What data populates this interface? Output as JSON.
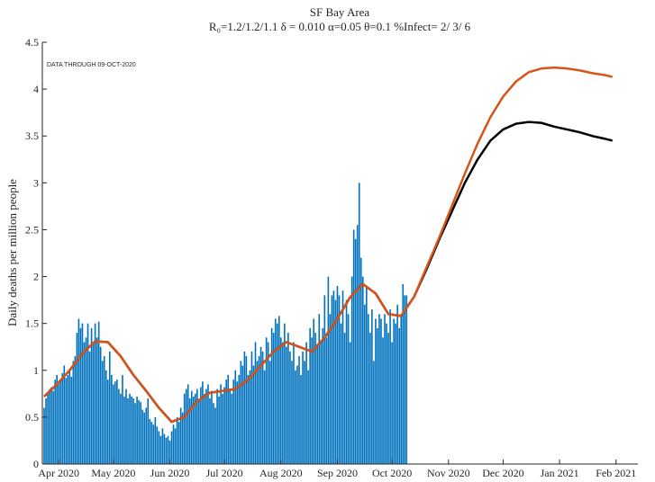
{
  "chart_data": {
    "type": "bar",
    "title": "SF Bay Area",
    "subtitle": "R₀=1.2/1.2/1.1  δ = 0.010  α=0.05  θ=0.1  %Infect= 2/ 3/ 6",
    "annotation": "DATA THROUGH 09-OCT-2020",
    "ylabel": "Daily deaths per million people",
    "xlim": [
      -9,
      318
    ],
    "xticks": [
      {
        "value": 0,
        "label": "Apr 2020"
      },
      {
        "value": 30,
        "label": "May 2020"
      },
      {
        "value": 61,
        "label": "Jun 2020"
      },
      {
        "value": 91,
        "label": "Jul 2020"
      },
      {
        "value": 122,
        "label": "Aug 2020"
      },
      {
        "value": 153,
        "label": "Sep 2020"
      },
      {
        "value": 183,
        "label": "Oct 2020"
      },
      {
        "value": 214,
        "label": "Nov 2020"
      },
      {
        "value": 244,
        "label": "Dec 2020"
      },
      {
        "value": 275,
        "label": "Jan 2021"
      },
      {
        "value": 306,
        "label": "Feb 2021"
      }
    ],
    "ylim": [
      0,
      4.5
    ],
    "yticks": [
      0,
      0.5,
      1,
      1.5,
      2,
      2.5,
      3,
      3.5,
      4,
      4.5
    ],
    "bars": {
      "color": "#0072bd",
      "x": [
        -8,
        -7,
        -6,
        -5,
        -4,
        -3,
        -2,
        -1,
        0,
        1,
        2,
        3,
        4,
        5,
        6,
        7,
        8,
        9,
        10,
        11,
        12,
        13,
        14,
        15,
        16,
        17,
        18,
        19,
        20,
        21,
        22,
        23,
        24,
        25,
        26,
        27,
        28,
        29,
        30,
        31,
        32,
        33,
        34,
        35,
        36,
        37,
        38,
        39,
        40,
        41,
        42,
        43,
        44,
        45,
        46,
        47,
        48,
        49,
        50,
        51,
        52,
        53,
        54,
        55,
        56,
        57,
        58,
        59,
        60,
        61,
        62,
        63,
        64,
        65,
        66,
        67,
        68,
        69,
        70,
        71,
        72,
        73,
        74,
        75,
        76,
        77,
        78,
        79,
        80,
        81,
        82,
        83,
        84,
        85,
        86,
        87,
        88,
        89,
        90,
        91,
        92,
        93,
        94,
        95,
        96,
        97,
        98,
        99,
        100,
        101,
        102,
        103,
        104,
        105,
        106,
        107,
        108,
        109,
        110,
        111,
        112,
        113,
        114,
        115,
        116,
        117,
        118,
        119,
        120,
        121,
        122,
        123,
        124,
        125,
        126,
        127,
        128,
        129,
        130,
        131,
        132,
        133,
        134,
        135,
        136,
        137,
        138,
        139,
        140,
        141,
        142,
        143,
        144,
        145,
        146,
        147,
        148,
        149,
        150,
        151,
        152,
        153,
        154,
        155,
        156,
        157,
        158,
        159,
        160,
        161,
        162,
        163,
        164,
        165,
        166,
        167,
        168,
        169,
        170,
        171,
        172,
        173,
        174,
        175,
        176,
        177,
        178,
        179,
        180,
        181,
        182,
        183,
        184,
        185,
        186,
        187,
        188,
        189,
        190,
        191
      ],
      "values": [
        0.6,
        0.7,
        0.75,
        0.8,
        0.82,
        0.78,
        0.9,
        0.95,
        0.85,
        0.9,
        0.97,
        1.05,
        0.92,
        0.95,
        1.0,
        0.93,
        1.1,
        1.15,
        1.4,
        1.55,
        1.45,
        1.5,
        1.3,
        1.35,
        1.5,
        1.2,
        1.45,
        1.3,
        1.5,
        1.35,
        1.52,
        1.25,
        1.1,
        1.15,
        1.0,
        0.9,
        1.2,
        0.95,
        0.85,
        0.88,
        0.9,
        0.8,
        0.75,
        0.95,
        0.72,
        0.8,
        0.7,
        0.75,
        0.72,
        0.7,
        0.65,
        0.72,
        0.68,
        0.66,
        0.58,
        0.55,
        0.6,
        0.7,
        0.48,
        0.45,
        0.42,
        0.5,
        0.4,
        0.35,
        0.3,
        0.38,
        0.32,
        0.28,
        0.3,
        0.25,
        0.35,
        0.42,
        0.38,
        0.5,
        0.45,
        0.6,
        0.55,
        0.75,
        0.8,
        0.85,
        0.7,
        0.78,
        0.72,
        0.75,
        0.8,
        0.68,
        0.82,
        0.88,
        0.75,
        0.8,
        0.85,
        0.7,
        0.78,
        0.65,
        0.6,
        0.8,
        0.72,
        0.85,
        0.75,
        0.82,
        0.9,
        0.95,
        0.8,
        0.75,
        0.9,
        1.0,
        0.88,
        0.95,
        1.1,
        1.05,
        1.2,
        1.15,
        0.95,
        1.0,
        1.2,
        1.05,
        1.3,
        1.1,
        1.15,
        1.25,
        1.2,
        1.0,
        1.35,
        1.3,
        1.1,
        1.45,
        1.4,
        1.55,
        1.5,
        1.58,
        1.35,
        1.3,
        1.5,
        1.25,
        1.4,
        1.2,
        1.1,
        1.3,
        1.0,
        1.05,
        1.15,
        0.95,
        1.2,
        1.1,
        1.3,
        1.0,
        1.45,
        1.35,
        1.55,
        1.4,
        1.25,
        1.6,
        1.3,
        1.45,
        1.8,
        1.35,
        2.0,
        1.6,
        1.8,
        1.85,
        1.75,
        1.9,
        1.8,
        1.5,
        1.85,
        1.4,
        1.75,
        1.6,
        1.3,
        2.0,
        2.5,
        2.4,
        2.55,
        3.0,
        2.2,
        2.0,
        1.7,
        1.9,
        1.6,
        1.4,
        1.65,
        1.1,
        1.55,
        1.45,
        1.6,
        1.55,
        1.35,
        1.6,
        1.5,
        1.4,
        1.65,
        1.3,
        1.55,
        1.5,
        1.7,
        1.45,
        1.6,
        1.92,
        1.8,
        1.8
      ]
    },
    "lines": [
      {
        "color": "#000000",
        "x": [
          -8,
          -1,
          6,
          13,
          20,
          27,
          34,
          41,
          48,
          55,
          62,
          69,
          76,
          83,
          90,
          97,
          104,
          111,
          118,
          125,
          132,
          139,
          146,
          153,
          160,
          167,
          174,
          181,
          188,
          195,
          202,
          209,
          216,
          223,
          230,
          237,
          244,
          251,
          258,
          265,
          272,
          279,
          286,
          293,
          300,
          304
        ],
        "values": [
          0.72,
          0.85,
          1.0,
          1.18,
          1.31,
          1.3,
          1.15,
          0.95,
          0.78,
          0.6,
          0.45,
          0.5,
          0.67,
          0.76,
          0.78,
          0.8,
          0.9,
          1.05,
          1.2,
          1.3,
          1.25,
          1.2,
          1.35,
          1.55,
          1.78,
          1.92,
          1.82,
          1.6,
          1.58,
          1.78,
          2.08,
          2.4,
          2.7,
          3.0,
          3.25,
          3.45,
          3.57,
          3.63,
          3.65,
          3.64,
          3.6,
          3.57,
          3.54,
          3.5,
          3.47,
          3.45
        ]
      },
      {
        "color": "#d95319",
        "x": [
          -8,
          -1,
          6,
          13,
          20,
          27,
          34,
          41,
          48,
          55,
          62,
          69,
          76,
          83,
          90,
          97,
          104,
          111,
          118,
          125,
          132,
          139,
          146,
          153,
          160,
          167,
          174,
          181,
          188,
          195,
          202,
          209,
          216,
          223,
          230,
          237,
          244,
          251,
          258,
          265,
          272,
          279,
          286,
          293,
          300,
          304
        ],
        "values": [
          0.72,
          0.85,
          1.0,
          1.18,
          1.31,
          1.3,
          1.15,
          0.95,
          0.78,
          0.6,
          0.45,
          0.5,
          0.67,
          0.76,
          0.78,
          0.8,
          0.9,
          1.05,
          1.2,
          1.3,
          1.25,
          1.2,
          1.35,
          1.55,
          1.78,
          1.92,
          1.82,
          1.6,
          1.58,
          1.78,
          2.1,
          2.42,
          2.76,
          3.1,
          3.42,
          3.7,
          3.92,
          4.08,
          4.18,
          4.22,
          4.23,
          4.22,
          4.2,
          4.17,
          4.15,
          4.13
        ]
      }
    ]
  }
}
